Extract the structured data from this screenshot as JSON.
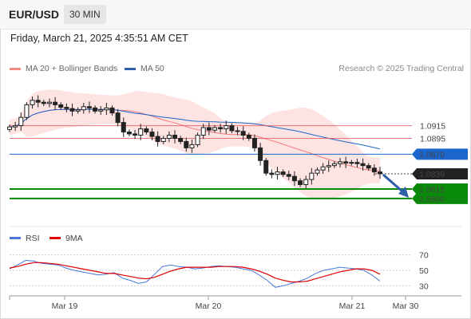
{
  "header": {
    "symbol": "EUR/USD",
    "timeframe": "30 MIN",
    "datetime": "Friday, March 21, 2025 4:35:51 AM CET"
  },
  "legend": {
    "bollinger": {
      "label": "MA 20 + Bollinger Bands",
      "color": "#f28b82"
    },
    "ma50": {
      "label": "MA 50",
      "color": "#2f5ea8"
    },
    "credit": "Research © 2025 Trading Central"
  },
  "rsi_legend": {
    "rsi": {
      "label": "RSI",
      "color": "#4a78d8"
    },
    "ma": {
      "label": "9MA",
      "color": "#e00000"
    }
  },
  "colors": {
    "resistance": "#e8545a",
    "pivot": "#1a66cc",
    "support": "#0a8a0a",
    "candle": "#222222",
    "bands_fill": "#fde0df",
    "current_tag": "#222222",
    "arrow": "#2f5ea8"
  },
  "chart_data": [
    {
      "type": "candlestick",
      "x_tick_labels": [
        "Mar 19",
        "Mar 20",
        "Mar 21",
        "Mar 30"
      ],
      "ylim": [
        1.0776,
        1.099
      ],
      "levels": [
        {
          "value": 1.0915,
          "label": "1.0915",
          "role": "resistance"
        },
        {
          "value": 1.0895,
          "label": "1.0895",
          "role": "resistance"
        },
        {
          "value": 1.087,
          "label": "1.0870",
          "role": "pivot"
        },
        {
          "value": 1.0815,
          "label": "1.0815",
          "role": "support"
        },
        {
          "value": 1.08,
          "label": "1.0800",
          "role": "support"
        }
      ],
      "current_price": {
        "value": 1.0839,
        "label": "1.0839"
      },
      "close_series": [
        1.0913,
        1.0915,
        1.0928,
        1.0948,
        1.0955,
        1.0952,
        1.095,
        1.0952,
        1.0948,
        1.0944,
        1.0942,
        1.0938,
        1.094,
        1.0945,
        1.0943,
        1.0938,
        1.094,
        1.0943,
        1.0935,
        1.092,
        1.0905,
        1.0902,
        1.09,
        1.091,
        1.0905,
        1.0898,
        1.089,
        1.0895,
        1.09,
        1.0895,
        1.089,
        1.088,
        1.0885,
        1.09,
        1.0912,
        1.0908,
        1.0912,
        1.091,
        1.0915,
        1.0907,
        1.0906,
        1.09,
        1.0895,
        1.088,
        1.086,
        1.084,
        1.0838,
        1.0842,
        1.0838,
        1.0835,
        1.0828,
        1.0822,
        1.083,
        1.084,
        1.0845,
        1.085,
        1.0852,
        1.0855,
        1.0858,
        1.0856,
        1.0857,
        1.0855,
        1.0852,
        1.0848,
        1.0842,
        1.0839
      ]
    },
    {
      "type": "line",
      "title": "RSI",
      "y_tick_labels": [
        "70",
        "50",
        "30"
      ],
      "ylim": [
        20,
        80
      ],
      "series": [
        {
          "name": "RSI",
          "values": [
            52,
            57,
            63,
            62,
            59,
            58,
            57,
            53,
            50,
            48,
            46,
            44,
            45,
            47,
            40,
            37,
            33,
            35,
            45,
            55,
            57,
            55,
            54,
            52,
            53,
            55,
            56,
            55,
            54,
            52,
            50,
            44,
            37,
            28,
            30,
            33,
            36,
            40,
            46,
            50,
            52,
            54,
            53,
            52,
            50,
            44,
            36
          ]
        },
        {
          "name": "9MA",
          "values": [
            53,
            55,
            58,
            60,
            60,
            59,
            58,
            56,
            54,
            52,
            50,
            48,
            46,
            46,
            44,
            42,
            40,
            39,
            41,
            45,
            49,
            52,
            54,
            54,
            54,
            54,
            55,
            55,
            55,
            54,
            52,
            49,
            45,
            40,
            37,
            35,
            35,
            36,
            39,
            42,
            45,
            48,
            50,
            52,
            52,
            50,
            45
          ]
        }
      ]
    }
  ]
}
